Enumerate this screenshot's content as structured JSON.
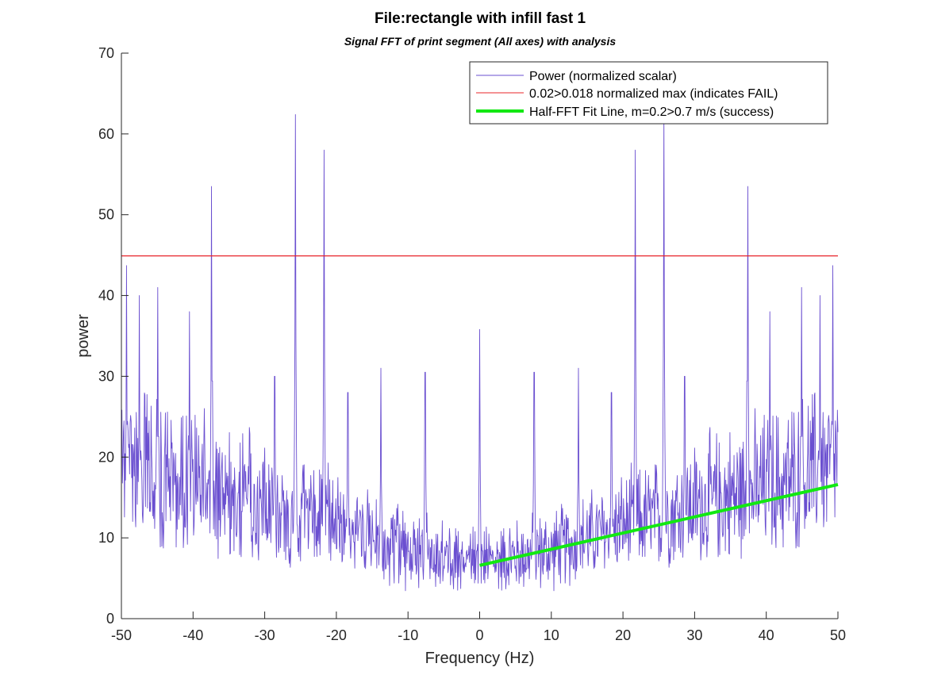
{
  "chart_data": {
    "type": "line",
    "title": "File:rectangle with infill fast 1",
    "subtitle": "Signal FFT of print segment (All axes) with analysis",
    "xlabel": "Frequency (Hz)",
    "ylabel": "power",
    "xlim": [
      -50,
      50
    ],
    "ylim": [
      0,
      70
    ],
    "xticks": [
      -50,
      -40,
      -30,
      -20,
      -10,
      0,
      10,
      20,
      30,
      40,
      50
    ],
    "yticks": [
      0,
      10,
      20,
      30,
      40,
      50,
      60,
      70
    ],
    "grid": false,
    "legend_position": "top-right",
    "series": [
      {
        "name": "Power (normalized scalar)",
        "color": "#6a4fd0",
        "spectrum": {
          "symmetric": true,
          "x_range": [
            -50,
            50
          ],
          "baseline": [
            [
              0,
              6
            ],
            [
              10,
              7
            ],
            [
              20,
              10
            ],
            [
              30,
              12
            ],
            [
              40,
              14
            ],
            [
              45,
              15
            ],
            [
              50,
              17
            ]
          ],
          "noise_amplitude": [
            [
              0,
              7
            ],
            [
              20,
              10
            ],
            [
              35,
              14
            ],
            [
              50,
              17
            ]
          ],
          "peaks": [
            {
              "x": 0,
              "y": 35.8
            },
            {
              "x": 7.6,
              "y": 30.5
            },
            {
              "x": 13.8,
              "y": 31
            },
            {
              "x": 18.4,
              "y": 28
            },
            {
              "x": 21.7,
              "y": 58
            },
            {
              "x": 25.7,
              "y": 62.4
            },
            {
              "x": 28.6,
              "y": 30
            },
            {
              "x": 37.4,
              "y": 53.5
            },
            {
              "x": 40.5,
              "y": 38
            },
            {
              "x": 44.9,
              "y": 41
            },
            {
              "x": 47.5,
              "y": 40
            },
            {
              "x": 49.3,
              "y": 43.7
            }
          ]
        }
      },
      {
        "name": "0.02>0.018 normalized max (indicates FAIL)",
        "color": "#e8242a",
        "type": "hline",
        "y": 44.9
      },
      {
        "name": "Half-FFT Fit Line, m=0.2>0.7 m/s (success)",
        "color": "#12e812",
        "type": "line",
        "x": [
          0,
          50
        ],
        "y": [
          6.6,
          16.6
        ]
      }
    ]
  }
}
